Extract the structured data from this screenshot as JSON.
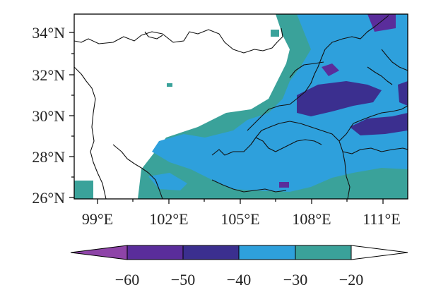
{
  "map": {
    "lat_labels": [
      "34°N",
      "32°N",
      "30°N",
      "28°N",
      "26°N"
    ],
    "lon_labels": [
      "99°E",
      "102°E",
      "105°E",
      "108°E",
      "111°E"
    ],
    "lat_range": [
      26,
      35
    ],
    "lon_range": [
      97.4,
      111.5
    ]
  },
  "colorbar": {
    "labels": [
      "−60",
      "−50",
      "−40",
      "−30",
      "−20"
    ],
    "colors": [
      "#8e44a8",
      "#5a2d9b",
      "#3b2f8f",
      "#2ea0dc",
      "#3aa29a",
      "#ffffff"
    ]
  },
  "fill_colors": {
    "level_30": "#3aa29a",
    "level_40": "#2ea0dc",
    "level_50": "#5a2d9b",
    "level_60": "#3b2f8f"
  }
}
